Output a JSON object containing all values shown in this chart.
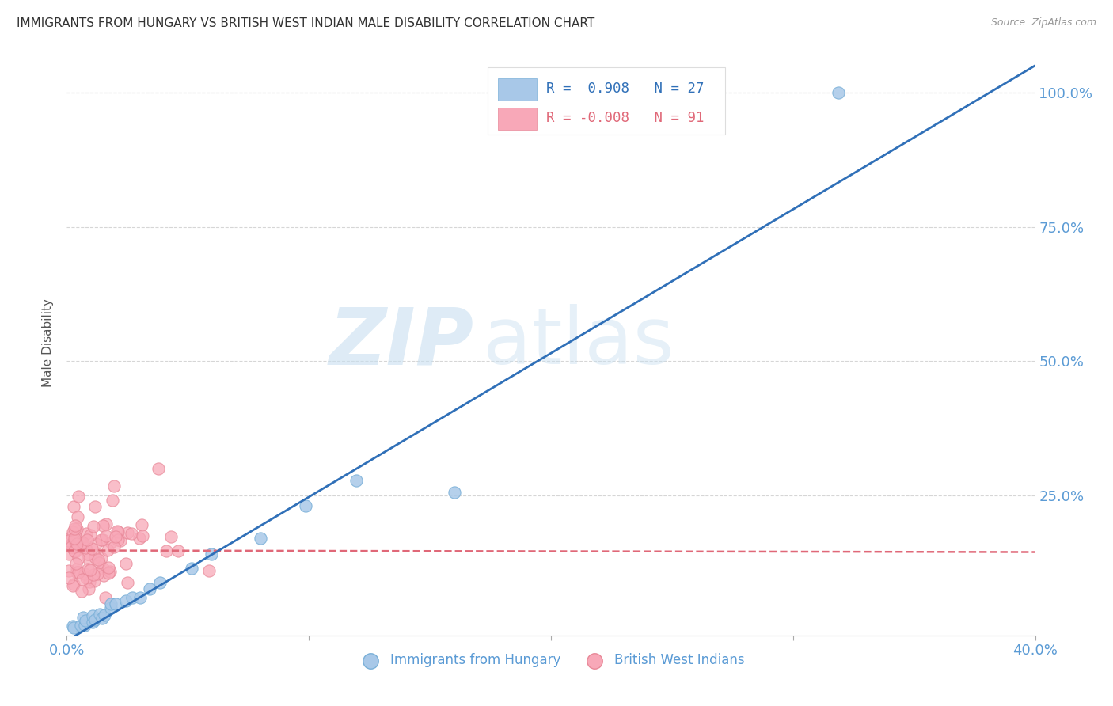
{
  "title": "IMMIGRANTS FROM HUNGARY VS BRITISH WEST INDIAN MALE DISABILITY CORRELATION CHART",
  "source": "Source: ZipAtlas.com",
  "ylabel": "Male Disability",
  "xlim": [
    0.0,
    0.4
  ],
  "ylim": [
    -0.01,
    1.08
  ],
  "ytick_vals": [
    0.0,
    0.25,
    0.5,
    0.75,
    1.0
  ],
  "ytick_labels": [
    "",
    "25.0%",
    "50.0%",
    "75.0%",
    "100.0%"
  ],
  "xtick_vals": [
    0.0,
    0.1,
    0.2,
    0.3,
    0.4
  ],
  "xtick_labels": [
    "0.0%",
    "",
    "",
    "",
    "40.0%"
  ],
  "hungary_R": 0.908,
  "hungary_N": 27,
  "bwi_R": -0.008,
  "bwi_N": 91,
  "hungary_scatter_color": "#a8c8e8",
  "hungary_edge_color": "#7ab0d8",
  "hungary_line_color": "#3070b8",
  "bwi_scatter_color": "#f8a8b8",
  "bwi_edge_color": "#e88898",
  "bwi_line_color": "#e06878",
  "watermark_color": "#c8dff0",
  "background_color": "#ffffff",
  "grid_color": "#cccccc",
  "title_fontsize": 11,
  "tick_label_color": "#5b9bd5",
  "legend_color": "#3070b8",
  "legend_bwi_color": "#e06878",
  "hungary_line_x0": 0.0,
  "hungary_line_y0": -0.02,
  "hungary_line_x1": 0.4,
  "hungary_line_y1": 1.05,
  "bwi_line_x0": 0.0,
  "bwi_line_y0": 0.148,
  "bwi_line_x1": 0.4,
  "bwi_line_y1": 0.145
}
